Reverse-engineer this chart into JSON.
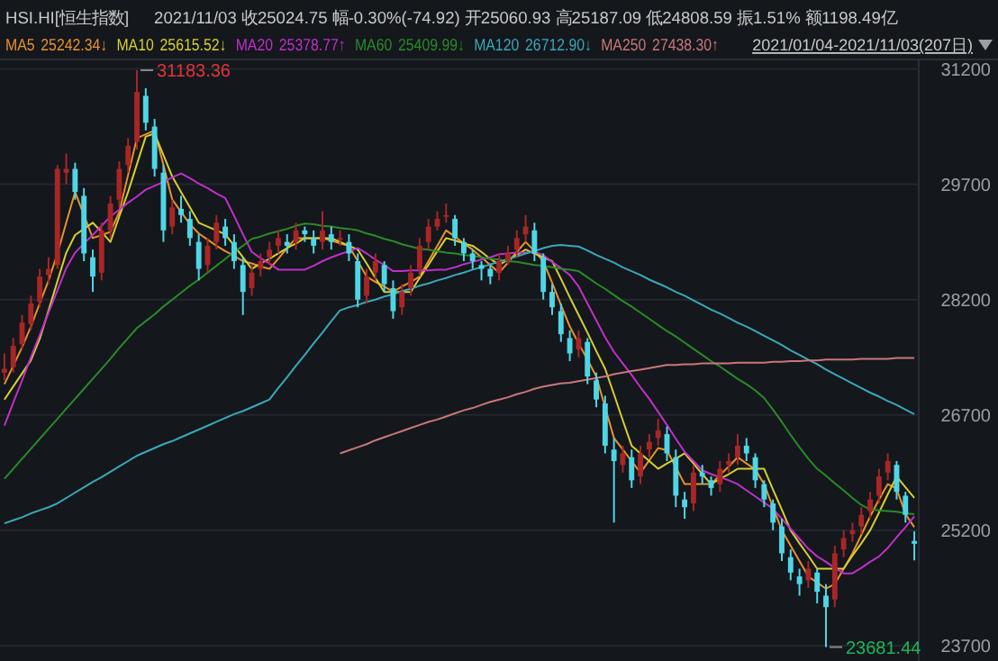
{
  "chart_data": {
    "type": "candlestick",
    "title": "HSI.HI[恒生指数]",
    "subtitle": "2021/11/03 收25024.75 幅-0.30%(-74.92) 开25060.93 高25187.09 低24808.59 振1.51% 额1198.49亿",
    "categories": [
      null,
      null,
      null,
      null,
      null,
      null,
      null,
      null,
      null,
      null,
      null,
      null,
      null,
      null,
      null,
      null,
      null,
      null,
      null,
      null,
      null,
      null,
      null,
      null,
      null,
      null,
      null,
      null,
      null,
      null,
      null,
      null,
      null,
      null,
      null,
      null,
      null,
      null,
      null,
      null,
      null,
      null,
      null,
      null,
      null,
      null,
      null,
      null,
      null,
      null,
      null,
      null,
      null,
      null,
      null,
      null,
      null,
      null,
      null,
      null,
      null,
      null,
      null,
      null,
      null,
      null,
      null,
      null,
      null,
      null,
      null,
      null,
      null,
      null,
      null,
      null,
      null,
      null,
      null,
      null,
      null,
      null,
      null,
      null,
      null,
      null,
      null,
      null,
      null,
      null,
      null,
      null,
      null,
      null,
      null,
      null,
      null,
      null,
      null,
      null,
      null,
      null,
      null,
      null
    ],
    "ohlc": [
      [
        27250,
        27500,
        27150,
        27300
      ],
      [
        27320,
        27700,
        27250,
        27600
      ],
      [
        27620,
        28000,
        27550,
        27900
      ],
      [
        27880,
        28250,
        27800,
        28150
      ],
      [
        28170,
        28600,
        28100,
        28500
      ],
      [
        28520,
        28750,
        28400,
        28600
      ],
      [
        28650,
        29950,
        28600,
        29900
      ],
      [
        29850,
        30100,
        29700,
        29900
      ],
      [
        29900,
        29980,
        29500,
        29600
      ],
      [
        29550,
        29650,
        28700,
        28800
      ],
      [
        28750,
        28850,
        28300,
        28500
      ],
      [
        28550,
        29200,
        28450,
        29100
      ],
      [
        29100,
        29550,
        29000,
        29450
      ],
      [
        29500,
        30000,
        29400,
        29900
      ],
      [
        29950,
        30300,
        29850,
        30200
      ],
      [
        30250,
        31183.36,
        30150,
        30900
      ],
      [
        30850,
        30950,
        30400,
        30500
      ],
      [
        30450,
        30550,
        29800,
        29900
      ],
      [
        29850,
        29950,
        28950,
        29100
      ],
      [
        29150,
        29500,
        29050,
        29400
      ],
      [
        29380,
        29550,
        29200,
        29300
      ],
      [
        29250,
        29350,
        28900,
        29000
      ],
      [
        28950,
        29050,
        28450,
        28600
      ],
      [
        28650,
        29000,
        28550,
        28900
      ],
      [
        28950,
        29300,
        28850,
        29200
      ],
      [
        29150,
        29250,
        28900,
        29000
      ],
      [
        28950,
        29050,
        28600,
        28700
      ],
      [
        28650,
        28750,
        28000,
        28300
      ],
      [
        28350,
        28650,
        28250,
        28550
      ],
      [
        28600,
        28800,
        28500,
        28700
      ],
      [
        28750,
        28950,
        28650,
        28850
      ],
      [
        28900,
        29100,
        28800,
        29000
      ],
      [
        28950,
        29050,
        28800,
        28900
      ],
      [
        28950,
        29200,
        28850,
        29100
      ],
      [
        29100,
        29150,
        28950,
        29050
      ],
      [
        29000,
        29100,
        28800,
        28900
      ],
      [
        28950,
        29350,
        28850,
        29100
      ],
      [
        29050,
        29150,
        28850,
        28950
      ],
      [
        29000,
        29100,
        28900,
        29000
      ],
      [
        28950,
        29050,
        28700,
        28800
      ],
      [
        28700,
        28800,
        28100,
        28200
      ],
      [
        28250,
        28600,
        28150,
        28500
      ],
      [
        28550,
        28800,
        28450,
        28700
      ],
      [
        28650,
        28700,
        28300,
        28400
      ],
      [
        28350,
        28450,
        27950,
        28050
      ],
      [
        28100,
        28400,
        28000,
        28300
      ],
      [
        28350,
        28650,
        28250,
        28550
      ],
      [
        28600,
        29000,
        28500,
        28900
      ],
      [
        28950,
        29250,
        28850,
        29150
      ],
      [
        29150,
        29350,
        29100,
        29250
      ],
      [
        29300,
        29450,
        29200,
        29300
      ],
      [
        29250,
        29300,
        28900,
        29000
      ],
      [
        28950,
        29000,
        28700,
        28800
      ],
      [
        28800,
        28850,
        28600,
        28700
      ],
      [
        28650,
        28700,
        28450,
        28600
      ],
      [
        28600,
        28650,
        28400,
        28500
      ],
      [
        28550,
        28800,
        28450,
        28700
      ],
      [
        28700,
        28900,
        28650,
        28800
      ],
      [
        28850,
        29100,
        28750,
        29000
      ],
      [
        29050,
        29300,
        28950,
        29150
      ],
      [
        29100,
        29200,
        28700,
        28800
      ],
      [
        28750,
        28800,
        28200,
        28300
      ],
      [
        28300,
        28400,
        28000,
        28100
      ],
      [
        28050,
        28150,
        27650,
        27750
      ],
      [
        27700,
        27800,
        27400,
        27500
      ],
      [
        27550,
        27800,
        27450,
        27700
      ],
      [
        27650,
        27700,
        27100,
        27200
      ],
      [
        27150,
        27250,
        26800,
        26900
      ],
      [
        26850,
        26950,
        26200,
        26300
      ],
      [
        26250,
        26400,
        25300,
        26100
      ],
      [
        26050,
        26300,
        25950,
        26200
      ],
      [
        26150,
        26250,
        25750,
        25850
      ],
      [
        25900,
        26300,
        25800,
        26200
      ],
      [
        26250,
        26450,
        26150,
        26350
      ],
      [
        26400,
        26650,
        26300,
        26500
      ],
      [
        26450,
        26550,
        26100,
        26200
      ],
      [
        26150,
        26250,
        25500,
        25650
      ],
      [
        25600,
        25700,
        25350,
        25500
      ],
      [
        25550,
        26050,
        25450,
        25950
      ],
      [
        25950,
        26050,
        25800,
        25900
      ],
      [
        25850,
        25900,
        25650,
        25750
      ],
      [
        25800,
        26100,
        25700,
        26000
      ],
      [
        26050,
        26200,
        25950,
        26100
      ],
      [
        26150,
        26450,
        26050,
        26300
      ],
      [
        26300,
        26400,
        26100,
        26200
      ],
      [
        26150,
        26200,
        25750,
        25850
      ],
      [
        25800,
        25850,
        25500,
        25600
      ],
      [
        25550,
        25600,
        25200,
        25300
      ],
      [
        25250,
        25350,
        24800,
        24900
      ],
      [
        24850,
        24950,
        24550,
        24650
      ],
      [
        24600,
        24700,
        24350,
        24500
      ],
      [
        24550,
        24800,
        24450,
        24700
      ],
      [
        24650,
        24700,
        24250,
        24400
      ],
      [
        24350,
        24500,
        23681.44,
        24200
      ],
      [
        24300,
        25000,
        24200,
        24900
      ],
      [
        24950,
        25200,
        24850,
        25100
      ],
      [
        25150,
        25300,
        25050,
        25200
      ],
      [
        25250,
        25500,
        25150,
        25400
      ],
      [
        25450,
        25700,
        25350,
        25600
      ],
      [
        25650,
        26000,
        25550,
        25900
      ],
      [
        25950,
        26200,
        25850,
        26100
      ],
      [
        26050,
        26100,
        25600,
        25700
      ],
      [
        25650,
        25700,
        25300,
        25400
      ],
      [
        25060.93,
        25187.09,
        24808.59,
        25024.75
      ]
    ],
    "colors": [
      "#a82626",
      "#a82626",
      "#a82626",
      "#a82626",
      "#a82626",
      "#a82626",
      "#a82626",
      "#a82626",
      "#4fd6e6",
      "#4fd6e6",
      "#4fd6e6",
      "#a82626",
      "#a82626",
      "#a82626",
      "#a82626",
      "#a82626",
      "#4fd6e6",
      "#4fd6e6",
      "#4fd6e6",
      "#a82626",
      "#4fd6e6",
      "#4fd6e6",
      "#4fd6e6",
      "#a82626",
      "#a82626",
      "#4fd6e6",
      "#4fd6e6",
      "#4fd6e6",
      "#a82626",
      "#a82626",
      "#a82626",
      "#a82626",
      "#4fd6e6",
      "#a82626",
      "#4fd6e6",
      "#4fd6e6",
      "#a82626",
      "#4fd6e6",
      "#a82626",
      "#4fd6e6",
      "#4fd6e6",
      "#a82626",
      "#a82626",
      "#4fd6e6",
      "#4fd6e6",
      "#a82626",
      "#a82626",
      "#a82626",
      "#a82626",
      "#a82626",
      "#a82626",
      "#4fd6e6",
      "#4fd6e6",
      "#4fd6e6",
      "#4fd6e6",
      "#4fd6e6",
      "#a82626",
      "#a82626",
      "#a82626",
      "#a82626",
      "#4fd6e6",
      "#4fd6e6",
      "#4fd6e6",
      "#4fd6e6",
      "#4fd6e6",
      "#a82626",
      "#4fd6e6",
      "#4fd6e6",
      "#4fd6e6",
      "#4fd6e6",
      "#a82626",
      "#4fd6e6",
      "#a82626",
      "#a82626",
      "#a82626",
      "#4fd6e6",
      "#4fd6e6",
      "#4fd6e6",
      "#a82626",
      "#4fd6e6",
      "#4fd6e6",
      "#a82626",
      "#a82626",
      "#a82626",
      "#4fd6e6",
      "#4fd6e6",
      "#4fd6e6",
      "#4fd6e6",
      "#4fd6e6",
      "#4fd6e6",
      "#4fd6e6",
      "#a82626",
      "#4fd6e6",
      "#4fd6e6",
      "#a82626",
      "#a82626",
      "#a82626",
      "#a82626",
      "#a82626",
      "#a82626",
      "#a82626",
      "#4fd6e6",
      "#4fd6e6",
      "#4fd6e6"
    ],
    "series": [
      {
        "name": "MA5",
        "type": "line",
        "color": "#e8922c",
        "values": [
          27100,
          27340,
          27580,
          27850,
          28150,
          28450,
          28800,
          29200,
          29600,
          29300,
          29000,
          29040,
          29080,
          29340,
          29820,
          30300,
          30350,
          30400,
          29950,
          29500,
          29340,
          29180,
          29060,
          28980,
          28900,
          28830,
          28770,
          28700,
          28670,
          28630,
          28600,
          28730,
          28870,
          29000,
          29000,
          29000,
          29000,
          28970,
          28930,
          28900,
          28700,
          28500,
          28430,
          28370,
          28300,
          28370,
          28430,
          28500,
          28700,
          28900,
          29100,
          29020,
          28930,
          28850,
          28750,
          28650,
          28550,
          28680,
          28820,
          28950,
          28830,
          28700,
          28420,
          28130,
          27850,
          27630,
          27420,
          27200,
          26800,
          26400,
          26250,
          26100,
          25950,
          26110,
          26270,
          26240,
          26020,
          25800,
          25800,
          25800,
          25800,
          25920,
          26030,
          26150,
          26070,
          25990,
          25800,
          25500,
          25200,
          25000,
          24800,
          24600,
          24520,
          24440,
          24500,
          24700,
          24900,
          25140,
          25380,
          25600,
          25800,
          25740,
          25410,
          25240
        ]
      },
      {
        "name": "MA10",
        "type": "line",
        "color": "#d6d030",
        "values": [
          26900,
          27070,
          27240,
          27410,
          27690,
          28060,
          28440,
          28810,
          29040,
          29120,
          29200,
          29080,
          28950,
          29280,
          29600,
          29960,
          30320,
          30360,
          30080,
          29800,
          29600,
          29400,
          29200,
          29150,
          29100,
          29050,
          28900,
          28750,
          28600,
          28670,
          28730,
          28800,
          28870,
          28930,
          29000,
          29000,
          29000,
          29000,
          28950,
          28900,
          28850,
          28670,
          28480,
          28300,
          28300,
          28300,
          28300,
          28480,
          28650,
          28830,
          29000,
          28970,
          28930,
          28900,
          28820,
          28730,
          28650,
          28720,
          28780,
          28850,
          28800,
          28750,
          28700,
          28470,
          28230,
          28000,
          27770,
          27530,
          27300,
          26970,
          26630,
          26300,
          26200,
          26100,
          26000,
          26070,
          26130,
          26200,
          26070,
          25930,
          25800,
          25870,
          25930,
          26000,
          26000,
          26000,
          26000,
          25730,
          25470,
          25200,
          25030,
          24870,
          24700,
          24700,
          24700,
          24700,
          24870,
          25030,
          25200,
          25430,
          25670,
          25900,
          25760,
          25620
        ]
      },
      {
        "name": "MA20",
        "type": "line",
        "color": "#c030c8",
        "values": [
          26560,
          26860,
          27150,
          27450,
          27740,
          28030,
          28320,
          28610,
          28810,
          28930,
          29040,
          29160,
          29280,
          29370,
          29460,
          29540,
          29630,
          29680,
          29730,
          29790,
          29840,
          29780,
          29710,
          29650,
          29580,
          29520,
          29290,
          29050,
          28820,
          28740,
          28670,
          28590,
          28590,
          28590,
          28590,
          28640,
          28700,
          28750,
          28790,
          28830,
          28870,
          28800,
          28720,
          28650,
          28570,
          28570,
          28580,
          28580,
          28580,
          28590,
          28590,
          28620,
          28660,
          28690,
          28720,
          28750,
          28790,
          28800,
          28810,
          28810,
          28820,
          28780,
          28690,
          28610,
          28520,
          28370,
          28150,
          27930,
          27710,
          27520,
          27370,
          27220,
          27060,
          26910,
          26740,
          26570,
          26390,
          26220,
          26100,
          25980,
          25930,
          25890,
          25850,
          25800,
          25720,
          25640,
          25560,
          25480,
          25350,
          25220,
          25090,
          24960,
          24860,
          24790,
          24710,
          24640,
          24640,
          24710,
          24790,
          24860,
          24970,
          25110,
          25240,
          25380
        ]
      },
      {
        "name": "MA60",
        "type": "line",
        "color": "#2a8a2a",
        "values": [
          25870,
          26000,
          26130,
          26260,
          26390,
          26520,
          26650,
          26780,
          26910,
          27040,
          27170,
          27300,
          27430,
          27570,
          27700,
          27830,
          27920,
          28010,
          28110,
          28200,
          28290,
          28380,
          28460,
          28550,
          28640,
          28730,
          28820,
          28900,
          28990,
          29020,
          29060,
          29090,
          29120,
          29160,
          29190,
          29180,
          29160,
          29150,
          29130,
          29120,
          29100,
          29060,
          29030,
          28990,
          28960,
          28920,
          28890,
          28860,
          28850,
          28830,
          28810,
          28800,
          28780,
          28770,
          28750,
          28730,
          28720,
          28700,
          28690,
          28670,
          28650,
          28640,
          28620,
          28600,
          28590,
          28570,
          28490,
          28410,
          28340,
          28260,
          28180,
          28110,
          28030,
          27950,
          27870,
          27790,
          27720,
          27640,
          27560,
          27480,
          27400,
          27330,
          27250,
          27170,
          27100,
          27020,
          26920,
          26770,
          26610,
          26440,
          26280,
          26130,
          26000,
          25910,
          25810,
          25720,
          25620,
          25530,
          25470,
          25460,
          25450,
          25440,
          25420,
          25410
        ]
      },
      {
        "name": "MA120",
        "type": "line",
        "color": "#3aa8b8",
        "values": [
          25290,
          25330,
          25370,
          25420,
          25460,
          25500,
          25550,
          25620,
          25690,
          25760,
          25830,
          25890,
          25960,
          26030,
          26100,
          26170,
          26220,
          26270,
          26320,
          26360,
          26410,
          26460,
          26510,
          26560,
          26610,
          26660,
          26710,
          26750,
          26800,
          26850,
          26900,
          27050,
          27190,
          27340,
          27480,
          27630,
          27770,
          27920,
          28060,
          28100,
          28130,
          28170,
          28200,
          28240,
          28270,
          28310,
          28340,
          28380,
          28410,
          28450,
          28480,
          28520,
          28550,
          28590,
          28620,
          28660,
          28690,
          28730,
          28760,
          28800,
          28830,
          28870,
          28900,
          28910,
          28900,
          28890,
          28840,
          28780,
          28730,
          28680,
          28620,
          28570,
          28520,
          28460,
          28410,
          28360,
          28300,
          28250,
          28190,
          28130,
          28070,
          28020,
          27960,
          27900,
          27850,
          27790,
          27730,
          27670,
          27610,
          27540,
          27480,
          27420,
          27360,
          27290,
          27230,
          27170,
          27110,
          27050,
          26990,
          26940,
          26880,
          26830,
          26770,
          26710
        ]
      },
      {
        "name": "MA250",
        "type": "line",
        "color": "#c87878",
        "values": [
          null,
          null,
          null,
          null,
          null,
          null,
          null,
          null,
          null,
          null,
          null,
          null,
          null,
          null,
          null,
          null,
          null,
          null,
          null,
          null,
          null,
          null,
          null,
          null,
          null,
          null,
          null,
          null,
          null,
          null,
          null,
          null,
          null,
          null,
          null,
          null,
          null,
          null,
          26200,
          26240,
          26280,
          26320,
          26370,
          26410,
          26450,
          26490,
          26530,
          26570,
          26610,
          26640,
          26680,
          26720,
          26760,
          26790,
          26830,
          26870,
          26900,
          26930,
          26970,
          27000,
          27040,
          27070,
          27090,
          27110,
          27120,
          27140,
          27160,
          27180,
          27200,
          27230,
          27250,
          27270,
          27290,
          27310,
          27330,
          27350,
          27350,
          27360,
          27360,
          27370,
          27370,
          27370,
          27370,
          27380,
          27380,
          27380,
          27380,
          27390,
          27390,
          27400,
          27400,
          27410,
          27410,
          27420,
          27420,
          27420,
          27420,
          27430,
          27430,
          27430,
          27430,
          27440,
          27440,
          27440
        ]
      }
    ],
    "annotations": [
      "25242.34↓",
      "25615.52↓",
      "25378.77↑",
      "25409.99↓",
      "26712.90↓",
      "27438.30↑",
      "2021/01/04-2021/11/03(207日)",
      "31183.36",
      "23681.44"
    ],
    "ylim": [
      23500,
      31300
    ],
    "yticks": [
      31200,
      29700,
      28200,
      26700,
      25200,
      23700
    ],
    "grid": "y",
    "tick_labels": "y"
  }
}
